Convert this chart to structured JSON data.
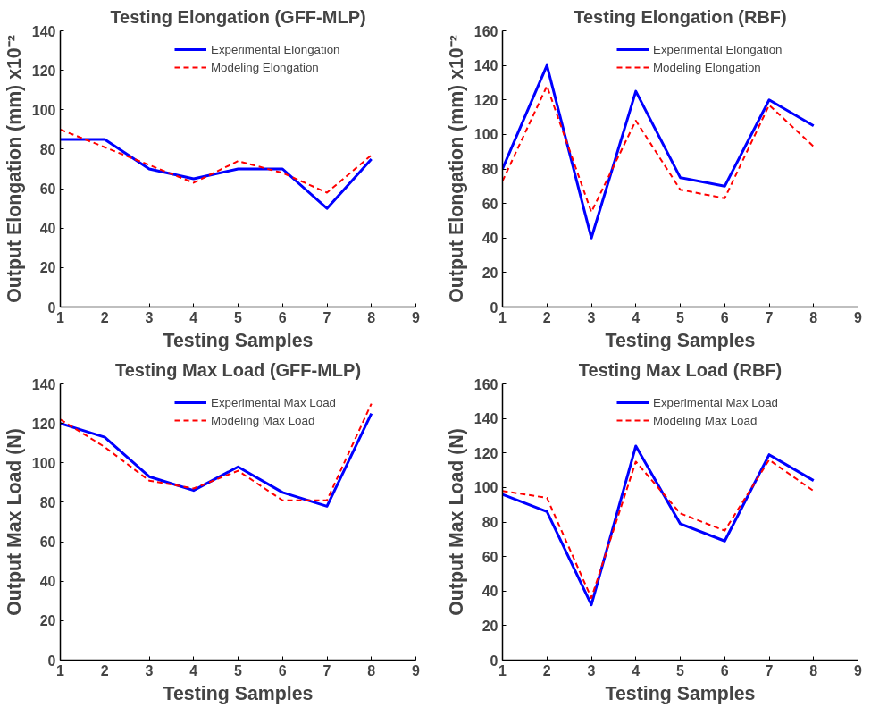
{
  "chart_data": [
    {
      "type": "line",
      "title": "Testing Elongation (GFF-MLP)",
      "xlabel": "Testing Samples",
      "ylabel": "Output Elongation (mm) x10⁻²",
      "x": [
        1,
        2,
        3,
        4,
        5,
        6,
        7,
        8
      ],
      "xlim": [
        1,
        9
      ],
      "xticks": [
        1,
        2,
        3,
        4,
        5,
        6,
        7,
        8,
        9
      ],
      "ylim": [
        0,
        140
      ],
      "yticks": [
        0,
        20,
        40,
        60,
        80,
        100,
        120,
        140
      ],
      "grid": false,
      "legend": "top right",
      "series": [
        {
          "name": "Experimental Elongation",
          "color": "#0000ff",
          "line_style": "solid",
          "values": [
            85,
            85,
            70,
            65,
            70,
            70,
            50,
            75
          ]
        },
        {
          "name": "Modeling Elongation",
          "color": "#ff0000",
          "line_style": "dashed",
          "values": [
            90,
            81,
            72,
            63,
            74,
            68,
            58,
            77
          ]
        }
      ]
    },
    {
      "type": "line",
      "title": "Testing Elongation (RBF)",
      "xlabel": "Testing Samples",
      "ylabel": "Output Elongation (mm) x10⁻²",
      "x": [
        1,
        2,
        3,
        4,
        5,
        6,
        7,
        8
      ],
      "xlim": [
        1,
        9
      ],
      "xticks": [
        1,
        2,
        3,
        4,
        5,
        6,
        7,
        8,
        9
      ],
      "ylim": [
        0,
        160
      ],
      "yticks": [
        0,
        20,
        40,
        60,
        80,
        100,
        120,
        140,
        160
      ],
      "grid": false,
      "legend": "top right",
      "series": [
        {
          "name": "Experimental Elongation",
          "color": "#0000ff",
          "line_style": "solid",
          "values": [
            80,
            140,
            40,
            125,
            75,
            70,
            120,
            105
          ]
        },
        {
          "name": "Modeling Elongation",
          "color": "#ff0000",
          "line_style": "dashed",
          "values": [
            73,
            128,
            55,
            108,
            68,
            63,
            117,
            93
          ]
        }
      ]
    },
    {
      "type": "line",
      "title": "Testing Max Load (GFF-MLP)",
      "xlabel": "Testing Samples",
      "ylabel": "Output Max Load (N)",
      "x": [
        1,
        2,
        3,
        4,
        5,
        6,
        7,
        8
      ],
      "xlim": [
        1,
        9
      ],
      "xticks": [
        1,
        2,
        3,
        4,
        5,
        6,
        7,
        8,
        9
      ],
      "ylim": [
        0,
        140
      ],
      "yticks": [
        0,
        20,
        40,
        60,
        80,
        100,
        120,
        140
      ],
      "grid": false,
      "legend": "top right",
      "series": [
        {
          "name": "Experimental Max Load",
          "color": "#0000ff",
          "line_style": "solid",
          "values": [
            120,
            113,
            93,
            86,
            98,
            85,
            78,
            125
          ]
        },
        {
          "name": "Modeling Max Load",
          "color": "#ff0000",
          "line_style": "dashed",
          "values": [
            122,
            108,
            91,
            87,
            96,
            81,
            81,
            130
          ]
        }
      ]
    },
    {
      "type": "line",
      "title": "Testing Max Load (RBF)",
      "xlabel": "Testing Samples",
      "ylabel": "Output Max Load (N)",
      "x": [
        1,
        2,
        3,
        4,
        5,
        6,
        7,
        8
      ],
      "xlim": [
        1,
        9
      ],
      "xticks": [
        1,
        2,
        3,
        4,
        5,
        6,
        7,
        8,
        9
      ],
      "ylim": [
        0,
        160
      ],
      "yticks": [
        0,
        20,
        40,
        60,
        80,
        100,
        120,
        140,
        160
      ],
      "grid": false,
      "legend": "top right",
      "series": [
        {
          "name": "Experimental Max Load",
          "color": "#0000ff",
          "line_style": "solid",
          "values": [
            96,
            86,
            32,
            124,
            79,
            69,
            119,
            104
          ]
        },
        {
          "name": "Modeling Max Load",
          "color": "#ff0000",
          "line_style": "dashed",
          "values": [
            98,
            94,
            36,
            115,
            85,
            75,
            116,
            98
          ]
        }
      ]
    }
  ]
}
